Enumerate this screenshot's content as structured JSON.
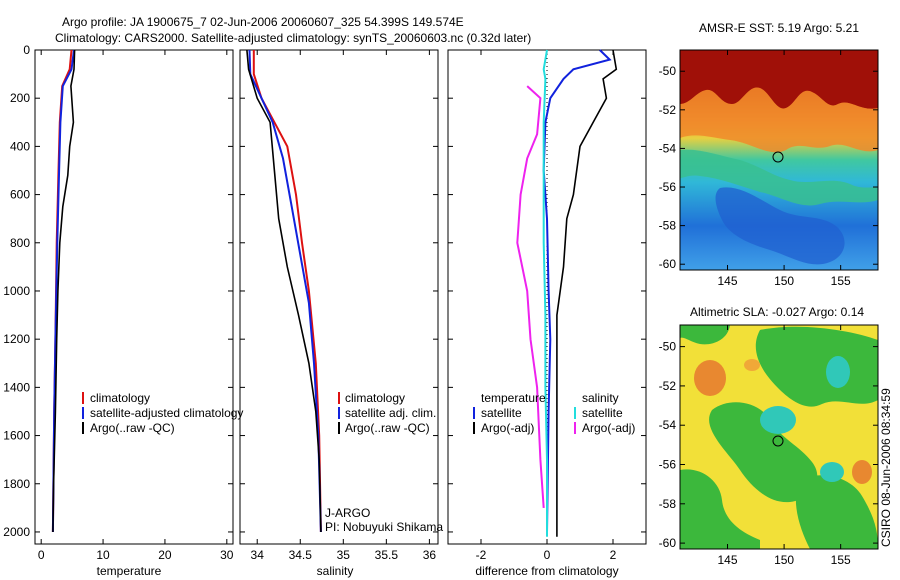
{
  "title_line1": "Argo profile: JA 1900675_7 02-Jun-2006 20060607_325 54.399S 149.574E",
  "title_line2": "Climatology: CARS2000. Satellite-adjusted climatology: synTS_20060603.nc (0.32d later)",
  "side_label": "CSIRO 08-Jun-2006 08:34:59",
  "colors": {
    "red": "#dd1111",
    "blue": "#1122dd",
    "black": "#000000",
    "magenta": "#ee22ee",
    "cyan": "#22dddd"
  },
  "chart_data": [
    {
      "id": "temperature",
      "type": "line",
      "xlabel": "temperature",
      "ylim": [
        2050,
        0
      ],
      "xlim": [
        -1,
        31
      ],
      "xticks": [
        "0",
        "10",
        "20",
        "30"
      ],
      "xtick_values": [
        0,
        10,
        20,
        30
      ],
      "yticks": [
        "0",
        "200",
        "400",
        "600",
        "800",
        "1000",
        "1200",
        "1400",
        "1600",
        "1800",
        "2000"
      ],
      "ytick_values": [
        0,
        200,
        400,
        600,
        800,
        1000,
        1200,
        1400,
        1600,
        1800,
        2000
      ],
      "legend": [
        "climatology",
        "satellite-adjusted climatology",
        "Argo(..raw -QC)"
      ],
      "series": [
        {
          "color": "red",
          "points": [
            [
              4.9,
              0
            ],
            [
              4.6,
              80
            ],
            [
              3.4,
              150
            ],
            [
              3.0,
              300
            ],
            [
              2.8,
              500
            ],
            [
              2.5,
              800
            ],
            [
              2.3,
              1200
            ],
            [
              2.1,
              1500
            ],
            [
              1.9,
              2000
            ]
          ]
        },
        {
          "color": "blue",
          "points": [
            [
              5.3,
              0
            ],
            [
              4.9,
              80
            ],
            [
              3.5,
              150
            ],
            [
              3.1,
              300
            ],
            [
              2.9,
              500
            ],
            [
              2.6,
              800
            ],
            [
              2.3,
              1200
            ],
            [
              2.1,
              1500
            ],
            [
              1.9,
              2000
            ]
          ]
        },
        {
          "color": "black",
          "points": [
            [
              5.4,
              0
            ],
            [
              5.3,
              80
            ],
            [
              4.8,
              150
            ],
            [
              5.2,
              300
            ],
            [
              4.6,
              400
            ],
            [
              4.3,
              520
            ],
            [
              3.5,
              650
            ],
            [
              3.0,
              800
            ],
            [
              2.7,
              1000
            ],
            [
              2.5,
              1200
            ],
            [
              2.3,
              1500
            ],
            [
              2.0,
              1800
            ],
            [
              1.9,
              2000
            ]
          ]
        }
      ]
    },
    {
      "id": "salinity",
      "type": "line",
      "xlabel": "salinity",
      "ylim": [
        2050,
        0
      ],
      "xlim": [
        33.8,
        36.1
      ],
      "xticks": [
        "34",
        "34.5",
        "35",
        "35.5",
        "36"
      ],
      "xtick_values": [
        34,
        34.5,
        35,
        35.5,
        36
      ],
      "yticks": [],
      "ytick_values": [
        0,
        200,
        400,
        600,
        800,
        1000,
        1200,
        1400,
        1600,
        1800,
        2000
      ],
      "legend": [
        "climatology",
        "satellite adj. clim.",
        "Argo(..raw -QC)"
      ],
      "annotations": [
        "J-ARGO",
        "PI: Nobuyuki Shikama"
      ],
      "series": [
        {
          "color": "red",
          "points": [
            [
              33.96,
              0
            ],
            [
              33.96,
              100
            ],
            [
              34.05,
              200
            ],
            [
              34.2,
              300
            ],
            [
              34.35,
              400
            ],
            [
              34.45,
              600
            ],
            [
              34.52,
              800
            ],
            [
              34.6,
              1000
            ],
            [
              34.68,
              1300
            ],
            [
              34.72,
              1600
            ],
            [
              34.74,
              2000
            ]
          ]
        },
        {
          "color": "blue",
          "points": [
            [
              33.91,
              0
            ],
            [
              33.92,
              100
            ],
            [
              34.05,
              200
            ],
            [
              34.18,
              300
            ],
            [
              34.3,
              450
            ],
            [
              34.4,
              650
            ],
            [
              34.5,
              850
            ],
            [
              34.6,
              1050
            ],
            [
              34.66,
              1300
            ],
            [
              34.71,
              1600
            ],
            [
              34.74,
              2000
            ]
          ]
        },
        {
          "color": "black",
          "points": [
            [
              33.88,
              0
            ],
            [
              33.9,
              80
            ],
            [
              34.0,
              200
            ],
            [
              34.15,
              300
            ],
            [
              34.2,
              500
            ],
            [
              34.25,
              700
            ],
            [
              34.35,
              900
            ],
            [
              34.48,
              1100
            ],
            [
              34.6,
              1300
            ],
            [
              34.68,
              1500
            ],
            [
              34.72,
              1700
            ],
            [
              34.74,
              2000
            ]
          ]
        }
      ]
    },
    {
      "id": "difference",
      "type": "line",
      "xlabel": "difference from climatology",
      "ylim": [
        2050,
        0
      ],
      "xlim": [
        -3,
        3
      ],
      "xticks": [
        "-2",
        "0",
        "2"
      ],
      "xtick_values": [
        -2,
        0,
        2
      ],
      "yticks": [],
      "ytick_values": [
        0,
        200,
        400,
        600,
        800,
        1000,
        1200,
        1400,
        1600,
        1800,
        2000
      ],
      "legend_left_title": "temperature",
      "legend_left": [
        "satellite",
        "Argo(-adj)"
      ],
      "legend_right_title": "salinity",
      "legend_right": [
        "satellite",
        "Argo(-adj)"
      ],
      "series": [
        {
          "color": "blue",
          "points": [
            [
              1.6,
              0
            ],
            [
              1.9,
              40
            ],
            [
              0.8,
              80
            ],
            [
              0.5,
              120
            ],
            [
              0.1,
              200
            ],
            [
              -0.05,
              300
            ],
            [
              -0.1,
              500
            ],
            [
              0.0,
              700
            ],
            [
              0.05,
              1000
            ],
            [
              0.1,
              1200
            ],
            [
              0.05,
              1500
            ],
            [
              0.0,
              2000
            ]
          ]
        },
        {
          "color": "black",
          "points": [
            [
              2.0,
              0
            ],
            [
              2.1,
              80
            ],
            [
              1.7,
              120
            ],
            [
              1.8,
              200
            ],
            [
              1.4,
              300
            ],
            [
              1.0,
              400
            ],
            [
              0.8,
              600
            ],
            [
              0.6,
              700
            ],
            [
              0.5,
              900
            ],
            [
              0.3,
              1100
            ],
            [
              0.3,
              1400
            ],
            [
              0.3,
              1700
            ],
            [
              0.3,
              2020
            ]
          ]
        },
        {
          "color": "cyan",
          "points": [
            [
              0.0,
              0
            ],
            [
              -0.1,
              80
            ],
            [
              -0.05,
              120
            ],
            [
              -0.1,
              300
            ],
            [
              -0.1,
              500
            ],
            [
              -0.1,
              800
            ],
            [
              -0.05,
              1100
            ],
            [
              -0.05,
              1400
            ],
            [
              0.0,
              1700
            ],
            [
              0.0,
              2020
            ]
          ]
        },
        {
          "color": "magenta",
          "points": [
            [
              -0.6,
              150
            ],
            [
              -0.2,
              200
            ],
            [
              -0.3,
              350
            ],
            [
              -0.6,
              450
            ],
            [
              -0.8,
              600
            ],
            [
              -0.9,
              800
            ],
            [
              -0.6,
              1000
            ],
            [
              -0.5,
              1200
            ],
            [
              -0.3,
              1400
            ],
            [
              -0.2,
              1700
            ],
            [
              -0.1,
              1900
            ]
          ]
        }
      ]
    },
    {
      "id": "sst_map",
      "type": "heatmap",
      "title": "AMSR-E SST: 5.19 Argo: 5.21",
      "xticks": [
        "145",
        "150",
        "155"
      ],
      "yticks": [
        "-50",
        "-52",
        "-54",
        "-56",
        "-58",
        "-60"
      ],
      "marker": {
        "lon": 149.574,
        "lat": -54.399
      }
    },
    {
      "id": "sla_map",
      "type": "heatmap",
      "title": "Altimetric SLA: -0.027 Argo: 0.14",
      "xticks": [
        "145",
        "150",
        "155"
      ],
      "yticks": [
        "-50",
        "-52",
        "-54",
        "-56",
        "-58",
        "-60"
      ],
      "marker": {
        "lon": 149.574,
        "lat": -54.399
      }
    }
  ]
}
